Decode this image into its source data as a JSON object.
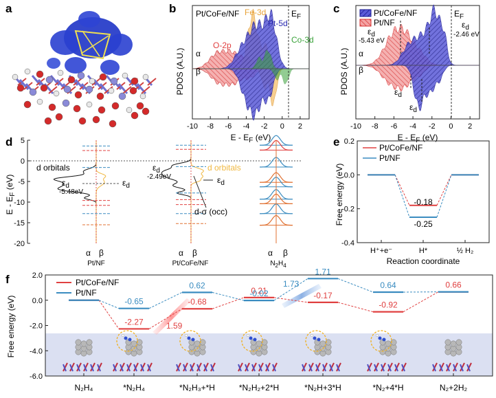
{
  "panel_labels": [
    "a",
    "b",
    "c",
    "d",
    "e",
    "f"
  ],
  "chart_data": [
    {
      "panel": "b",
      "type": "area",
      "xlabel": "E - E",
      "xlabel_sub": "F",
      "xlabel_unit": " (eV)",
      "ylabel": "PDOS (A.U.)",
      "xlim": [
        -10,
        3
      ],
      "xticks": [
        "-10",
        "-8",
        "-6",
        "-4",
        "-2",
        "0",
        "2"
      ],
      "legend": "Pt/CoFe/NF",
      "ef_label": "E",
      "ef_sub": "F",
      "spin_up": "α",
      "spin_down": "β",
      "series": [
        {
          "name": "Fe-3d",
          "color": "#f5c06b"
        },
        {
          "name": "Pt-5d",
          "color": "#2b2bb0"
        },
        {
          "name": "O-2p",
          "color": "#e04040"
        },
        {
          "name": "Co-3d",
          "color": "#3aa33a"
        }
      ]
    },
    {
      "panel": "c",
      "type": "area",
      "xlabel": "E - E",
      "xlabel_sub": "F",
      "xlabel_unit": " (eV)",
      "ylabel": "PDOS (A.U.)",
      "xlim": [
        -10,
        3
      ],
      "xticks": [
        "-10",
        "-8",
        "-6",
        "-4",
        "-2",
        "0",
        "2"
      ],
      "ef_label": "E",
      "ef_sub": "F",
      "spin_up": "α",
      "spin_down": "β",
      "series": [
        {
          "name": "Pt/CoFe/NF",
          "color": "#2b2bb0"
        },
        {
          "name": "Pt/NF",
          "color": "#e04040"
        }
      ],
      "annotations": [
        {
          "label": "ε",
          "sub": "d",
          "value": "-5.43 eV"
        },
        {
          "label": "ε",
          "sub": "d",
          "value": "-2.46 eV"
        },
        {
          "label": "ε",
          "sub": "d"
        },
        {
          "label": "ε",
          "sub": "d"
        }
      ]
    },
    {
      "panel": "d",
      "type": "line",
      "ylabel": "E - E",
      "ylabel_sub": "F",
      "ylabel_unit": " (eV)",
      "ylim": [
        -20,
        5
      ],
      "yticks": [
        "5",
        "0",
        "-5",
        "-10",
        "-15",
        "-20"
      ],
      "columns": [
        {
          "name": "Pt/NF",
          "alpha": "α",
          "beta": "β",
          "annot_orbital": "d orbitals",
          "eps": "ε",
          "eps_sub": "d",
          "eps_val": "-5.48eV",
          "eps2": "ε",
          "eps2_sub": "d"
        },
        {
          "name": "Pt/CoFe/NF",
          "alpha": "α",
          "beta": "β",
          "annot_orbital": "d orbitals",
          "eps": "ε",
          "eps_sub": "d",
          "eps_val": "-2.49eV",
          "eps2": "ε",
          "eps2_sub": "d",
          "annot_dsigma": "d-σ (occ)"
        },
        {
          "name": "N",
          "name_sub1": "2",
          "name_mid": "H",
          "name_sub2": "4",
          "alpha": "α",
          "beta": "β"
        }
      ]
    },
    {
      "panel": "e",
      "type": "line",
      "xlabel": "Reaction coordinate",
      "ylabel": "Free energy (eV)",
      "ylim": [
        -0.4,
        0.2
      ],
      "yticks": [
        "0.2",
        "0.0",
        "-0.2",
        "-0.4"
      ],
      "categories": [
        "H⁺+e⁻",
        "H*",
        "½ H₂"
      ],
      "series": [
        {
          "name": "Pt/CoFe/NF",
          "color": "#e04040",
          "values": [
            0,
            -0.18,
            0
          ]
        },
        {
          "name": "Pt/NF",
          "color": "#3a8cc0",
          "values": [
            0,
            -0.25,
            0
          ]
        }
      ],
      "value_labels": [
        "-0.18",
        "-0.25"
      ]
    },
    {
      "panel": "f",
      "type": "line",
      "ylabel": "Free energy (eV)",
      "ylim": [
        -6.0,
        2.0
      ],
      "yticks": [
        "2.0",
        "0.0",
        "-2.0",
        "-4.0",
        "-6.0"
      ],
      "categories": [
        "N₂H₄",
        "*N₂H₄",
        "*N₂H₃+*H",
        "*N₂H₂+2*H",
        "*N₂H+3*H",
        "*N₂+4*H",
        "N₂+2H₂"
      ],
      "series": [
        {
          "name": "Pt/CoFe/NF",
          "color": "#e04040",
          "values": [
            0,
            -2.27,
            -0.68,
            0.21,
            -0.17,
            -0.92,
            0.66
          ],
          "labels": [
            "",
            "-2.27",
            "-0.68",
            "0.21",
            "-0.17",
            "-0.92",
            "0.66"
          ]
        },
        {
          "name": "Pt/NF",
          "color": "#3a8cc0",
          "values": [
            0,
            -0.65,
            0.62,
            -0.02,
            1.71,
            0.64,
            0.66
          ],
          "labels": [
            "",
            "-0.65",
            "0.62",
            "-0.02",
            "1.71",
            "0.64",
            ""
          ]
        }
      ],
      "barriers": [
        {
          "label": "1.59",
          "color": "#e04040"
        },
        {
          "label": "1.73",
          "color": "#3a8cc0"
        }
      ]
    }
  ]
}
